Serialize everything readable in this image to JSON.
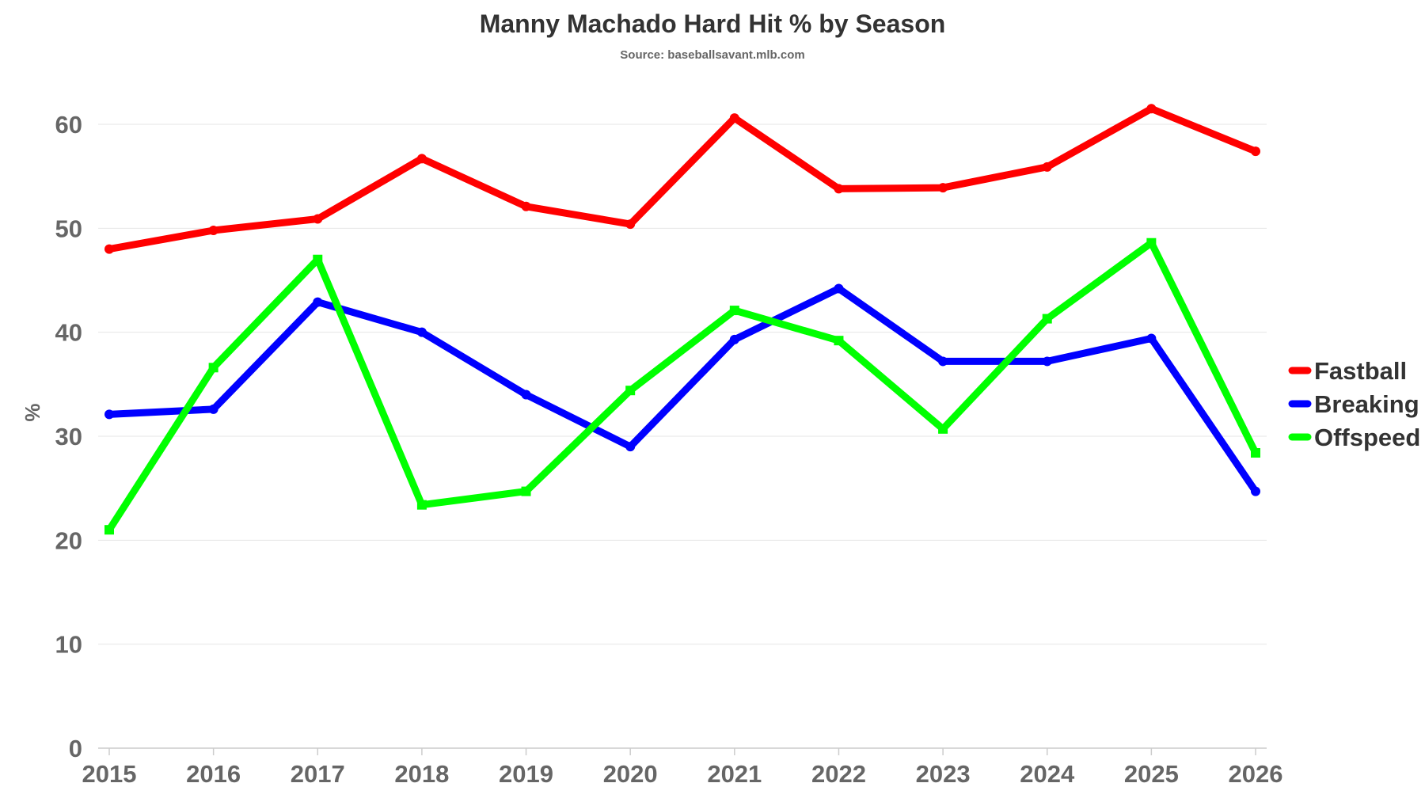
{
  "chart_data": {
    "type": "line",
    "title": "Manny Machado Hard Hit % by Season",
    "subtitle": "Source: baseballsavant.mlb.com",
    "xlabel": "",
    "ylabel": "%",
    "x": [
      "2015",
      "2016",
      "2017",
      "2018",
      "2019",
      "2020",
      "2021",
      "2022",
      "2023",
      "2024",
      "2025",
      "2026"
    ],
    "ylim": [
      0,
      60
    ],
    "yticks": [
      "0",
      "10",
      "20",
      "30",
      "40",
      "50",
      "60"
    ],
    "grid": true,
    "legend_position": "right",
    "series": [
      {
        "name": "Fastball",
        "color": "#ff0000",
        "values": [
          48.0,
          49.8,
          50.9,
          56.7,
          52.1,
          50.4,
          60.6,
          53.8,
          53.9,
          55.9,
          61.5,
          57.4
        ]
      },
      {
        "name": "Breaking",
        "color": "#0000ff",
        "values": [
          32.1,
          32.6,
          42.9,
          40.0,
          34.0,
          29.0,
          39.3,
          44.2,
          37.2,
          37.2,
          39.4,
          24.7
        ]
      },
      {
        "name": "Offspeed",
        "color": "#00ff00",
        "values": [
          21.0,
          36.6,
          47.0,
          23.4,
          24.7,
          34.4,
          42.1,
          39.2,
          30.7,
          41.3,
          48.6,
          28.4
        ]
      }
    ]
  }
}
